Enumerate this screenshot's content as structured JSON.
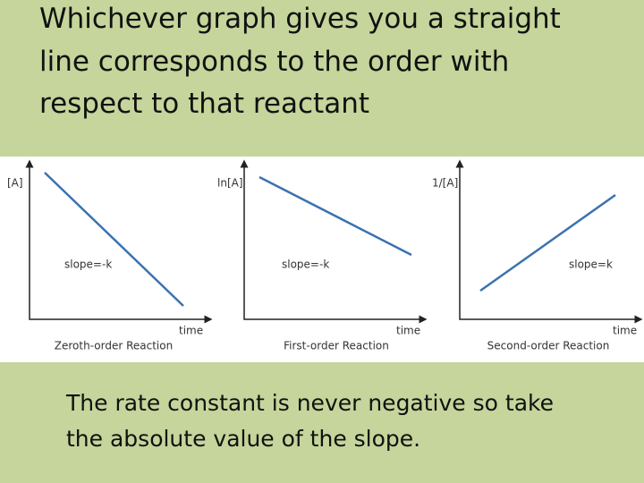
{
  "header": {
    "lines": [
      "Whichever graph gives you a straight",
      "line corresponds to the order with",
      "respect to that reactant"
    ]
  },
  "graphs": [
    {
      "y_label": "[A]",
      "x_label": "time",
      "slope_label": "slope=-k",
      "caption": "Zeroth-order Reaction"
    },
    {
      "y_label": "ln[A]",
      "x_label": "time",
      "slope_label": "slope=-k",
      "caption": "First-order Reaction"
    },
    {
      "y_label": "1/[A]",
      "x_label": "time",
      "slope_label": "slope=k",
      "caption": "Second-order Reaction"
    }
  ],
  "footer": {
    "lines": [
      "The rate constant is never negative so take",
      "the absolute value of the slope."
    ]
  }
}
